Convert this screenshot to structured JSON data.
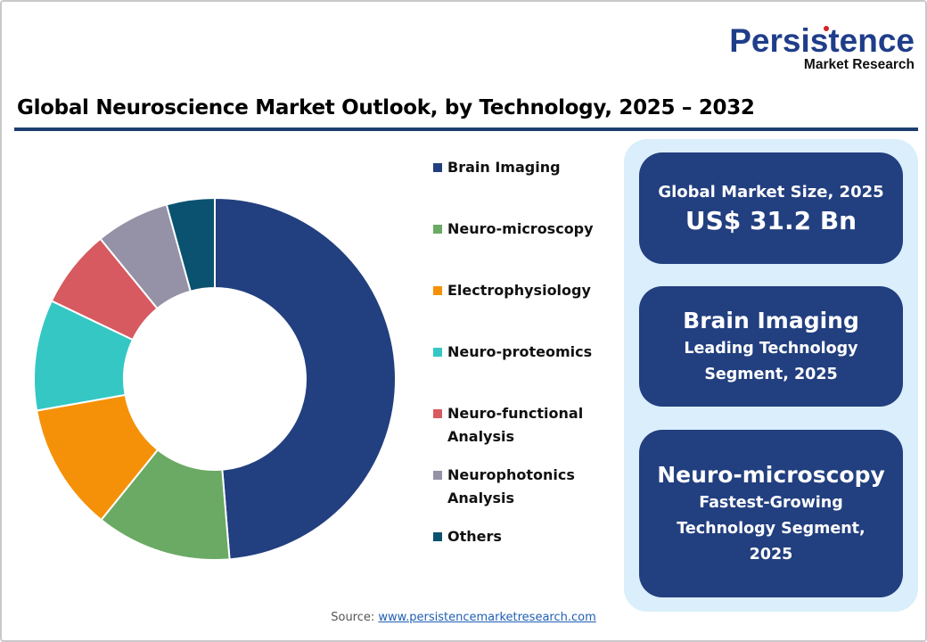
{
  "logo": {
    "brand": "Persistence",
    "subtitle": "Market Research"
  },
  "title": "Global Neuroscience Market Outlook, by Technology, 2025 – 2032",
  "chart_data": {
    "type": "pie",
    "subtype": "donut",
    "title": "Global Neuroscience Market Outlook, by Technology, 2025 – 2032",
    "categories": [
      "Brain Imaging",
      "Neuro-microscopy",
      "Electrophysiology",
      "Neuro-proteomics",
      "Neuro-functional Analysis",
      "Neurophotonics Analysis",
      "Others"
    ],
    "values": [
      48.7,
      12.1,
      11.4,
      9.9,
      7.0,
      6.6,
      4.3
    ],
    "unit": "% share (estimated from slice angles)",
    "colors": [
      "#223f7f",
      "#6aaa64",
      "#f59108",
      "#34c7c4",
      "#d65a60",
      "#9591a6",
      "#0a5270"
    ],
    "legend_position": "right",
    "start_angle_deg": 0,
    "direction": "clockwise"
  },
  "legend": [
    {
      "label": "Brain Imaging",
      "color": "#223f7f"
    },
    {
      "label": "Neuro-microscopy",
      "color": "#6aaa64"
    },
    {
      "label": "Electrophysiology",
      "color": "#f59108"
    },
    {
      "label": "Neuro-proteomics",
      "color": "#34c7c4"
    },
    {
      "label": "Neuro-functional\nAnalysis",
      "color": "#d65a60"
    },
    {
      "label": "Neurophotonics\nAnalysis",
      "color": "#9591a6"
    },
    {
      "label": "Others",
      "color": "#0a5270"
    }
  ],
  "cards": {
    "market_size": {
      "label": "Global Market Size, 2025",
      "value": "US$ 31.2 Bn"
    },
    "leading": {
      "name": "Brain Imaging",
      "line1": "Leading Technology",
      "line2": "Segment, 2025"
    },
    "fastest": {
      "name": "Neuro-microscopy",
      "line1": "Fastest-Growing",
      "line2": "Technology Segment,",
      "line3": "2025"
    }
  },
  "source": {
    "label": "Source: ",
    "link_text": "www.persistencemarketresearch.com"
  }
}
